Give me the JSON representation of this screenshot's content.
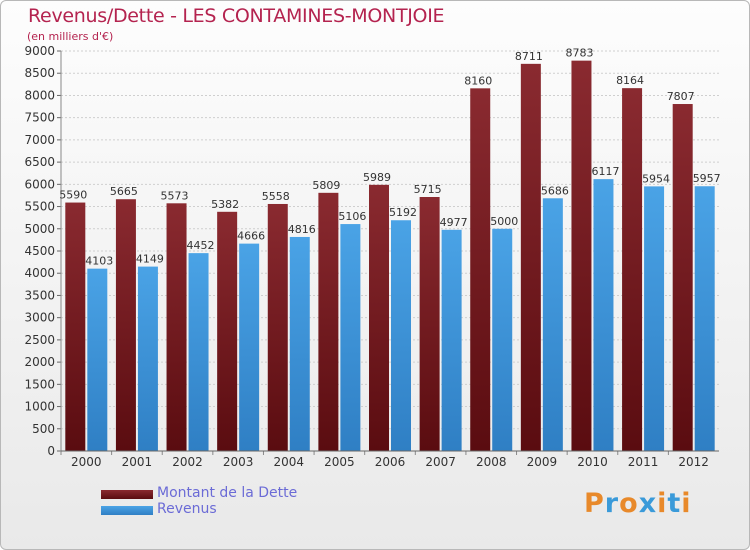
{
  "chart_data": {
    "type": "bar",
    "title": "Revenus/Dette - LES CONTAMINES-MONTJOIE",
    "subtitle": "(en milliers d'€)",
    "xlabel": "",
    "ylabel": "",
    "ylim": [
      0,
      9000
    ],
    "ytick_step": 500,
    "grid": true,
    "legend_position": "bottom-left",
    "categories": [
      "2000",
      "2001",
      "2002",
      "2003",
      "2004",
      "2005",
      "2006",
      "2007",
      "2008",
      "2009",
      "2010",
      "2011",
      "2012"
    ],
    "series": [
      {
        "name": "Montant de la Dette",
        "color": "#7a1d22",
        "values": [
          5590,
          5665,
          5573,
          5382,
          5558,
          5809,
          5989,
          5715,
          8160,
          8711,
          8783,
          8164,
          7807
        ]
      },
      {
        "name": "Revenus",
        "color": "#3c97dc",
        "values": [
          4103,
          4149,
          4452,
          4666,
          4816,
          5106,
          5192,
          4977,
          5000,
          5686,
          6117,
          5954,
          5957
        ]
      }
    ]
  },
  "logo": {
    "text": "Proxiti"
  },
  "colors": {
    "title": "#b4234f",
    "legend_text": "#6b6bd6",
    "logo_letters": [
      "#e8892a",
      "#3a9ad9",
      "#e8892a",
      "#3a9ad9",
      "#e8892a",
      "#3a9ad9",
      "#e8892a"
    ]
  }
}
